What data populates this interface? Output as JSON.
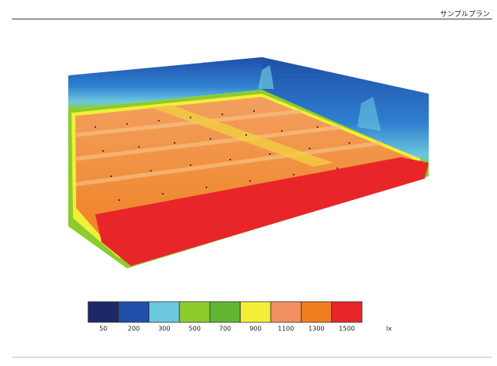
{
  "header": {
    "title": "サンプルプラン"
  },
  "legend": {
    "items": [
      {
        "label": "50",
        "color": "#1b2a66"
      },
      {
        "label": "200",
        "color": "#1f4fa8"
      },
      {
        "label": "300",
        "color": "#6cc8dc"
      },
      {
        "label": "500",
        "color": "#8ccc2c"
      },
      {
        "label": "700",
        "color": "#5fb632"
      },
      {
        "label": "900",
        "color": "#f2ee3a"
      },
      {
        "label": "1100",
        "color": "#f39060"
      },
      {
        "label": "1300",
        "color": "#ef7f1e"
      },
      {
        "label": "1500",
        "color": "#e8262a"
      }
    ],
    "unit": "lx"
  }
}
